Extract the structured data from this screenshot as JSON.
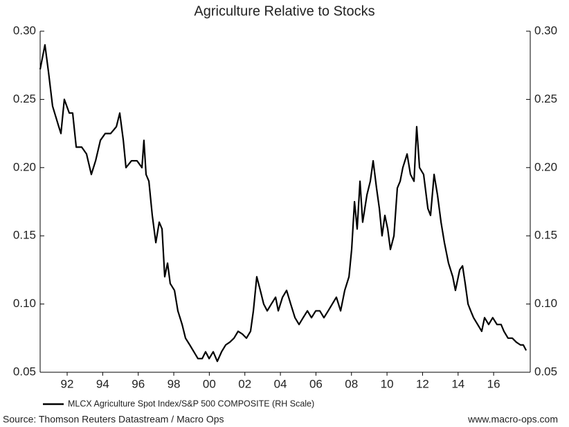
{
  "chart_data": {
    "type": "line",
    "title": "Agriculture Relative to Stocks",
    "source": "Source: Thomson Reuters Datastream / Macro Ops",
    "website": "www.macro-ops.com",
    "x": [
      1990.48,
      1990.75,
      1990.95,
      1991.18,
      1991.53,
      1991.65,
      1991.84,
      1992.12,
      1992.31,
      1992.51,
      1992.82,
      1993.09,
      1993.36,
      1993.6,
      1993.87,
      1994.14,
      1994.45,
      1994.77,
      1994.96,
      1995.16,
      1995.31,
      1995.62,
      1995.93,
      1996.21,
      1996.32,
      1996.44,
      1996.6,
      1996.79,
      1996.99,
      1997.18,
      1997.34,
      1997.49,
      1997.65,
      1997.8,
      1998.04,
      1998.23,
      1998.47,
      1998.66,
      1998.9,
      1999.13,
      1999.36,
      1999.6,
      1999.79,
      1999.99,
      2000.22,
      2000.45,
      2000.69,
      2000.92,
      2001.15,
      2001.39,
      2001.62,
      2001.86,
      2002.09,
      2002.32,
      2002.48,
      2002.67,
      2002.87,
      2003.06,
      2003.26,
      2003.49,
      2003.73,
      2003.88,
      2004.12,
      2004.35,
      2004.58,
      2004.82,
      2005.05,
      2005.28,
      2005.52,
      2005.75,
      2005.99,
      2006.22,
      2006.45,
      2006.69,
      2006.92,
      2007.15,
      2007.39,
      2007.62,
      2007.86,
      2008.01,
      2008.17,
      2008.32,
      2008.48,
      2008.63,
      2008.87,
      2009.06,
      2009.22,
      2009.41,
      2009.57,
      2009.72,
      2009.88,
      2010.04,
      2010.19,
      2010.39,
      2010.58,
      2010.74,
      2010.89,
      2011.13,
      2011.32,
      2011.52,
      2011.67,
      2011.83,
      2012.06,
      2012.3,
      2012.45,
      2012.65,
      2012.84,
      2013.04,
      2013.23,
      2013.46,
      2013.7,
      2013.85,
      2014.09,
      2014.25,
      2014.4,
      2014.56,
      2014.71,
      2014.87,
      2015.1,
      2015.33,
      2015.49,
      2015.72,
      2015.95,
      2016.19,
      2016.42,
      2016.58,
      2016.81,
      2017.05,
      2017.28,
      2017.51,
      2017.67,
      2017.83
    ],
    "series": [
      {
        "name": "MLCX Agriculture Spot Index/S&P 500 COMPOSITE (RH Scale)",
        "color": "#000000",
        "axis": "y2",
        "values": [
          0.272,
          0.29,
          0.27,
          0.245,
          0.23,
          0.225,
          0.25,
          0.24,
          0.24,
          0.215,
          0.215,
          0.21,
          0.195,
          0.205,
          0.22,
          0.225,
          0.225,
          0.23,
          0.24,
          0.22,
          0.2,
          0.205,
          0.205,
          0.2,
          0.22,
          0.195,
          0.19,
          0.165,
          0.145,
          0.16,
          0.155,
          0.12,
          0.13,
          0.115,
          0.11,
          0.095,
          0.085,
          0.075,
          0.07,
          0.065,
          0.06,
          0.06,
          0.065,
          0.06,
          0.065,
          0.058,
          0.065,
          0.07,
          0.072,
          0.075,
          0.08,
          0.078,
          0.075,
          0.08,
          0.095,
          0.12,
          0.11,
          0.1,
          0.095,
          0.1,
          0.105,
          0.095,
          0.105,
          0.11,
          0.1,
          0.09,
          0.085,
          0.09,
          0.095,
          0.09,
          0.095,
          0.095,
          0.09,
          0.095,
          0.1,
          0.105,
          0.095,
          0.11,
          0.12,
          0.14,
          0.175,
          0.155,
          0.19,
          0.16,
          0.18,
          0.19,
          0.205,
          0.185,
          0.17,
          0.15,
          0.165,
          0.155,
          0.14,
          0.15,
          0.185,
          0.19,
          0.2,
          0.21,
          0.195,
          0.19,
          0.23,
          0.2,
          0.195,
          0.17,
          0.165,
          0.195,
          0.18,
          0.16,
          0.145,
          0.13,
          0.12,
          0.11,
          0.125,
          0.128,
          0.115,
          0.1,
          0.095,
          0.09,
          0.085,
          0.08,
          0.09,
          0.085,
          0.09,
          0.085,
          0.085,
          0.08,
          0.075,
          0.075,
          0.072,
          0.07,
          0.07,
          0.066
        ]
      }
    ],
    "xlim": [
      1990.48,
      2018.06
    ],
    "xticks": [
      {
        "value": 1992,
        "label": "92"
      },
      {
        "value": 1994,
        "label": "94"
      },
      {
        "value": 1996,
        "label": "96"
      },
      {
        "value": 1998,
        "label": "98"
      },
      {
        "value": 2000,
        "label": "00"
      },
      {
        "value": 2002,
        "label": "02"
      },
      {
        "value": 2004,
        "label": "04"
      },
      {
        "value": 2006,
        "label": "06"
      },
      {
        "value": 2008,
        "label": "08"
      },
      {
        "value": 2010,
        "label": "10"
      },
      {
        "value": 2012,
        "label": "12"
      },
      {
        "value": 2014,
        "label": "14"
      },
      {
        "value": 2016,
        "label": "16"
      }
    ],
    "ylim": [
      0.05,
      0.3
    ],
    "yticks": [
      0.05,
      {
        "value": 0.1,
        "label": "0.10"
      },
      0.15,
      {
        "value": 0.2,
        "label": "0.20"
      },
      0.25,
      {
        "value": 0.3,
        "label": "0.30"
      }
    ],
    "y2lim": [
      0.05,
      0.3
    ],
    "y2ticks": [
      0.05,
      {
        "value": 0.1,
        "label": "0.10"
      },
      0.15,
      {
        "value": 0.2,
        "label": "0.20"
      },
      0.25,
      {
        "value": 0.3,
        "label": "0.30"
      }
    ]
  }
}
